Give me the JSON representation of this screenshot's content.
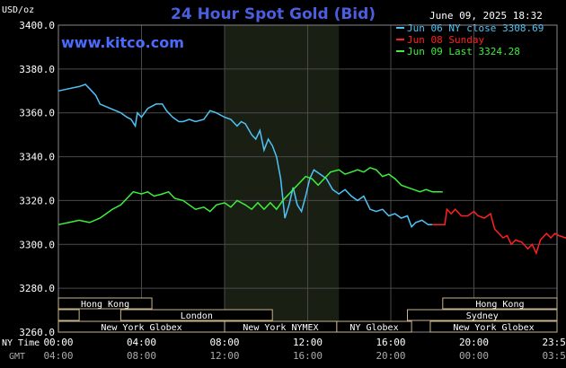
{
  "title": "24 Hour Spot Gold (Bid)",
  "date_label": "June 09, 2025 18:32",
  "watermark": "www.kitco.com",
  "unit_label": "USD/oz",
  "colors": {
    "background": "#000000",
    "plot_bg": "#000000",
    "ny_session_bg": "#1a1f14",
    "grid": "#4a4a4a",
    "title": "#4a5fe0",
    "watermark": "#4a6bff",
    "axis_text": "#ffffff",
    "session_text": "#ffffff",
    "session_border": "#c8b48a",
    "series_jun06": "#4fc3f7",
    "series_jun08": "#ff2020",
    "series_jun09": "#3cf03c"
  },
  "chart_data": {
    "type": "line",
    "ylim": [
      3260,
      3400
    ],
    "yticks": [
      3260,
      3280,
      3300,
      3320,
      3340,
      3360,
      3380,
      3400
    ],
    "ytick_labels": [
      "3260.0",
      "3280.0",
      "3300.0",
      "3320.0",
      "3340.0",
      "3360.0",
      "3380.0",
      "3400.0"
    ],
    "xlim": [
      0,
      24
    ],
    "xticks": [
      0,
      4,
      8,
      12,
      16,
      20,
      24
    ],
    "xtick_labels_ny": [
      "00:00",
      "04:00",
      "08:00",
      "12:00",
      "16:00",
      "20:00",
      "23:59"
    ],
    "xtick_labels_gmt": [
      "04:00",
      "08:00",
      "12:00",
      "16:00",
      "20:00",
      "00:00",
      "03:59"
    ],
    "row_label_ny": "NY Time",
    "row_label_gmt": "GMT",
    "ny_session_shade": [
      8,
      13.5
    ],
    "legend": [
      {
        "text": "Jun 06 NY close 3308.69",
        "color_key": "series_jun06"
      },
      {
        "text": "Jun 08 Sunday",
        "color_key": "series_jun08"
      },
      {
        "text": "Jun 09 Last 3324.28",
        "color_key": "series_jun09"
      }
    ],
    "series": [
      {
        "name": "Jun 06 NY close 3308.69",
        "color_key": "series_jun06",
        "points": [
          [
            0,
            3370
          ],
          [
            0.5,
            3371
          ],
          [
            1,
            3372
          ],
          [
            1.3,
            3373
          ],
          [
            1.5,
            3371
          ],
          [
            1.8,
            3368
          ],
          [
            2,
            3364
          ],
          [
            2.5,
            3362
          ],
          [
            3,
            3360
          ],
          [
            3.3,
            3358
          ],
          [
            3.5,
            3357
          ],
          [
            3.7,
            3354
          ],
          [
            3.8,
            3360
          ],
          [
            4,
            3358
          ],
          [
            4.3,
            3362
          ],
          [
            4.7,
            3364
          ],
          [
            5,
            3364
          ],
          [
            5.2,
            3361
          ],
          [
            5.5,
            3358
          ],
          [
            5.8,
            3356
          ],
          [
            6,
            3356
          ],
          [
            6.3,
            3357
          ],
          [
            6.6,
            3356
          ],
          [
            7,
            3357
          ],
          [
            7.3,
            3361
          ],
          [
            7.6,
            3360
          ],
          [
            8,
            3358
          ],
          [
            8.3,
            3357
          ],
          [
            8.6,
            3354
          ],
          [
            8.8,
            3356
          ],
          [
            9,
            3355
          ],
          [
            9.3,
            3350
          ],
          [
            9.5,
            3348
          ],
          [
            9.7,
            3352
          ],
          [
            9.9,
            3343
          ],
          [
            10.1,
            3348
          ],
          [
            10.3,
            3345
          ],
          [
            10.5,
            3340
          ],
          [
            10.7,
            3330
          ],
          [
            10.9,
            3312
          ],
          [
            11.1,
            3318
          ],
          [
            11.3,
            3326
          ],
          [
            11.5,
            3318
          ],
          [
            11.7,
            3315
          ],
          [
            11.9,
            3322
          ],
          [
            12.1,
            3330
          ],
          [
            12.3,
            3334
          ],
          [
            12.6,
            3332
          ],
          [
            12.9,
            3330
          ],
          [
            13.2,
            3325
          ],
          [
            13.5,
            3323
          ],
          [
            13.8,
            3325
          ],
          [
            14.1,
            3322
          ],
          [
            14.4,
            3320
          ],
          [
            14.7,
            3322
          ],
          [
            15,
            3316
          ],
          [
            15.3,
            3315
          ],
          [
            15.6,
            3316
          ],
          [
            15.9,
            3313
          ],
          [
            16.2,
            3314
          ],
          [
            16.5,
            3312
          ],
          [
            16.8,
            3313
          ],
          [
            17,
            3308
          ],
          [
            17.2,
            3310
          ],
          [
            17.5,
            3311
          ],
          [
            17.8,
            3309
          ],
          [
            18,
            3309
          ]
        ]
      },
      {
        "name": "Jun 08 Sunday",
        "color_key": "series_jun08",
        "points": [
          [
            18,
            3309
          ],
          [
            18.3,
            3309
          ],
          [
            18.6,
            3309
          ],
          [
            18.7,
            3316
          ],
          [
            18.9,
            3314
          ],
          [
            19.1,
            3316
          ],
          [
            19.4,
            3313
          ],
          [
            19.7,
            3313
          ],
          [
            20,
            3315
          ],
          [
            20.2,
            3313
          ],
          [
            20.5,
            3312
          ],
          [
            20.8,
            3314
          ],
          [
            21,
            3307
          ],
          [
            21.2,
            3305
          ],
          [
            21.4,
            3303
          ],
          [
            21.6,
            3304
          ],
          [
            21.8,
            3300
          ],
          [
            22,
            3302
          ],
          [
            22.3,
            3301
          ],
          [
            22.6,
            3298
          ],
          [
            22.8,
            3300
          ],
          [
            23,
            3296
          ],
          [
            23.2,
            3302
          ],
          [
            23.5,
            3305
          ],
          [
            23.7,
            3303
          ],
          [
            23.9,
            3305
          ],
          [
            24.1,
            3304
          ],
          [
            24.4,
            3303
          ],
          [
            24.7,
            3305
          ],
          [
            25,
            3308
          ],
          [
            25.3,
            3305
          ],
          [
            25.5,
            3307
          ],
          [
            25.8,
            3306
          ],
          [
            26,
            3307
          ]
        ]
      },
      {
        "name": "Jun 09 Last 3324.28",
        "color_key": "series_jun09",
        "points": [
          [
            0,
            3309
          ],
          [
            0.5,
            3310
          ],
          [
            1,
            3311
          ],
          [
            1.5,
            3310
          ],
          [
            2,
            3312
          ],
          [
            2.3,
            3314
          ],
          [
            2.6,
            3316
          ],
          [
            3,
            3318
          ],
          [
            3.3,
            3321
          ],
          [
            3.6,
            3324
          ],
          [
            4,
            3323
          ],
          [
            4.3,
            3324
          ],
          [
            4.6,
            3322
          ],
          [
            5,
            3323
          ],
          [
            5.3,
            3324
          ],
          [
            5.6,
            3321
          ],
          [
            6,
            3320
          ],
          [
            6.3,
            3318
          ],
          [
            6.6,
            3316
          ],
          [
            7,
            3317
          ],
          [
            7.3,
            3315
          ],
          [
            7.6,
            3318
          ],
          [
            8,
            3319
          ],
          [
            8.3,
            3317
          ],
          [
            8.6,
            3320
          ],
          [
            9,
            3318
          ],
          [
            9.3,
            3316
          ],
          [
            9.6,
            3319
          ],
          [
            9.9,
            3316
          ],
          [
            10.2,
            3319
          ],
          [
            10.5,
            3316
          ],
          [
            10.8,
            3320
          ],
          [
            11.1,
            3323
          ],
          [
            11.3,
            3325
          ],
          [
            11.6,
            3328
          ],
          [
            11.9,
            3331
          ],
          [
            12.2,
            3330
          ],
          [
            12.5,
            3327
          ],
          [
            12.8,
            3330
          ],
          [
            13.1,
            3333
          ],
          [
            13.5,
            3334
          ],
          [
            13.8,
            3332
          ],
          [
            14.1,
            3333
          ],
          [
            14.4,
            3334
          ],
          [
            14.7,
            3333
          ],
          [
            15,
            3335
          ],
          [
            15.3,
            3334
          ],
          [
            15.6,
            3331
          ],
          [
            15.9,
            3332
          ],
          [
            16.2,
            3330
          ],
          [
            16.5,
            3327
          ],
          [
            16.8,
            3326
          ],
          [
            17.1,
            3325
          ],
          [
            17.4,
            3324
          ],
          [
            17.7,
            3325
          ],
          [
            18,
            3324
          ],
          [
            18.3,
            3324
          ],
          [
            18.5,
            3324
          ]
        ]
      }
    ],
    "sessions": [
      {
        "label": "Hong Kong",
        "start": 0,
        "end": 4.5,
        "row": 0
      },
      {
        "label": "Hong Kong",
        "start": 18.5,
        "end": 24,
        "row": 0
      },
      {
        "label": "London",
        "start": 0,
        "end": 1.0,
        "row": 1,
        "no_label": true
      },
      {
        "label": "London",
        "start": 3.0,
        "end": 10.3,
        "row": 1
      },
      {
        "label": "Sydney",
        "start": 16.8,
        "end": 24,
        "row": 1
      },
      {
        "label": "New York Globex",
        "start": 0,
        "end": 8,
        "row": 2
      },
      {
        "label": "New York NYMEX",
        "start": 8,
        "end": 13.4,
        "row": 2
      },
      {
        "label": "NY Globex",
        "start": 13.4,
        "end": 17,
        "row": 2
      },
      {
        "label": "New York Globex",
        "start": 17.9,
        "end": 24,
        "row": 2
      }
    ]
  }
}
